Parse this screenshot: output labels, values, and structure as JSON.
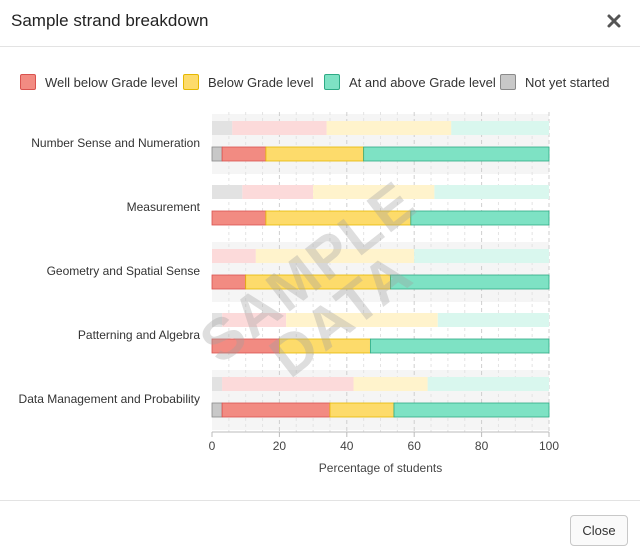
{
  "modal": {
    "title": "Sample strand breakdown",
    "close_icon": "close-icon",
    "close_button_label": "Close",
    "watermark_line1": "SAMPLE",
    "watermark_line2": "DATA"
  },
  "legend": [
    {
      "label": "Well below Grade level",
      "fill": "#f28b82",
      "border": "#d9534f"
    },
    {
      "label": "Below Grade level",
      "fill": "#fddb6b",
      "border": "#e6b800"
    },
    {
      "label": "At and above Grade level",
      "fill": "#7ee2c4",
      "border": "#2eaa85"
    },
    {
      "label": "Not yet started",
      "fill": "#c8c8c8",
      "border": "#8a8a8a"
    }
  ],
  "chart_data": {
    "type": "bar",
    "orientation": "horizontal",
    "stacked": true,
    "xlabel": "Percentage of students",
    "xlim": [
      0,
      100
    ],
    "xticks": [
      "0",
      "20",
      "40",
      "60",
      "80",
      "100"
    ],
    "grid": true,
    "categories": [
      "Number Sense and Numeration",
      "Measurement",
      "Geometry and Spatial Sense",
      "Patterning and Algebra",
      "Data Management and Probability"
    ],
    "comparison": [
      {
        "not_started": 6,
        "well_below": 28,
        "below": 37,
        "at_above": 29
      },
      {
        "not_started": 9,
        "well_below": 21,
        "below": 36,
        "at_above": 34
      },
      {
        "not_started": 0,
        "well_below": 13,
        "below": 47,
        "at_above": 40
      },
      {
        "not_started": 3,
        "well_below": 19,
        "below": 45,
        "at_above": 33
      },
      {
        "not_started": 3,
        "well_below": 39,
        "below": 22,
        "at_above": 36
      }
    ],
    "current": [
      {
        "not_started": 3,
        "well_below": 13,
        "below": 29,
        "at_above": 55
      },
      {
        "not_started": 0,
        "well_below": 16,
        "below": 43,
        "at_above": 41
      },
      {
        "not_started": 0,
        "well_below": 10,
        "below": 43,
        "at_above": 47
      },
      {
        "not_started": 0,
        "well_below": 20,
        "below": 27,
        "at_above": 53
      },
      {
        "not_started": 3,
        "well_below": 32,
        "below": 19,
        "at_above": 46
      }
    ],
    "colors": {
      "not_started": "#c8c8c8",
      "well_below": "#f28b82",
      "below": "#fddb6b",
      "at_above": "#7ee2c4",
      "not_started_light": "#e2e2e2",
      "well_below_light": "#fcdada",
      "below_light": "#fff3cc",
      "at_above_light": "#d9f7ee",
      "not_started_border": "#8a8a8a",
      "well_below_border": "#d9534f",
      "below_border": "#e6b800",
      "at_above_border": "#2eaa85"
    }
  }
}
